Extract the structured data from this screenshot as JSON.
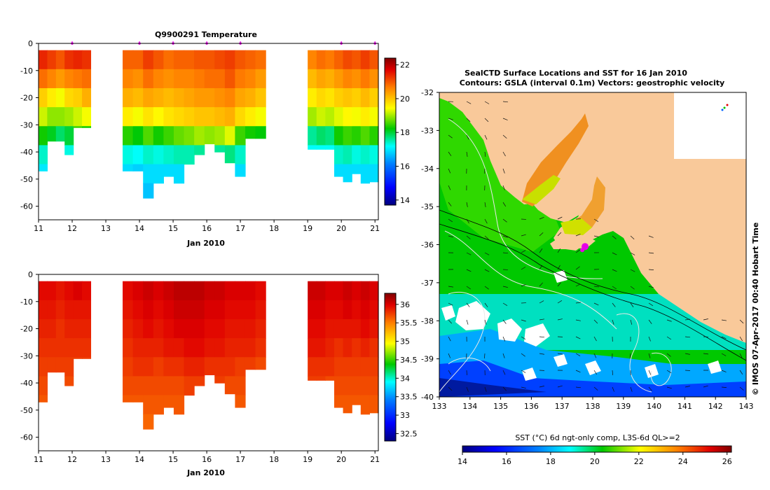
{
  "chart_data": [
    {
      "type": "heatmap",
      "title": "Q9900291  Temperature",
      "xlabel": "Jan 2010",
      "ylabel": "",
      "x_ticks": [
        "11",
        "12",
        "13",
        "14",
        "15",
        "16",
        "17",
        "18",
        "19",
        "20",
        "21"
      ],
      "xlim": [
        11,
        21.1
      ],
      "y_ticks": [
        "0",
        "-10",
        "-20",
        "-30",
        "-40",
        "-50",
        "-60"
      ],
      "ylim": [
        -65,
        0
      ],
      "profile_markers_day": [
        12.0,
        14.0,
        15.0,
        16.0,
        17.0,
        20.0,
        21.0
      ],
      "colorbar": {
        "ticks": [
          "14",
          "16",
          "18",
          "20",
          "22"
        ],
        "range": [
          13.7,
          22.4
        ]
      },
      "data_segments": [
        {
          "x_start": 11.0,
          "x_end": 12.55,
          "profiles": [
            {
              "x": 11.1,
              "depth": 47,
              "values": [
                21.4,
                20.8,
                19.9,
                19.2,
                18.3,
                17.4,
                17.0
              ]
            },
            {
              "x": 11.35,
              "depth": 36,
              "values": [
                21.2,
                20.6,
                19.6,
                18.9,
                18.1,
                17.2,
                17.0
              ]
            },
            {
              "x": 11.6,
              "depth": 36,
              "values": [
                21.0,
                20.4,
                19.4,
                18.9,
                17.8,
                17.1
              ]
            },
            {
              "x": 11.85,
              "depth": 41,
              "values": [
                21.3,
                20.6,
                19.8,
                19.0,
                18.0,
                17.3
              ]
            },
            {
              "x": 12.1,
              "depth": 31,
              "values": [
                21.4,
                20.7,
                19.9,
                19.2,
                18.5
              ]
            },
            {
              "x": 12.4,
              "depth": 31,
              "values": [
                21.3,
                20.8,
                20.2,
                19.4,
                18.3
              ]
            }
          ]
        },
        {
          "x_start": 13.5,
          "x_end": 17.75,
          "profiles": [
            {
              "x": 13.6,
              "depth": 47,
              "values": [
                20.9,
                20.6,
                20.2,
                19.6,
                18.4,
                17.3,
                16.9
              ]
            },
            {
              "x": 13.9,
              "depth": 47,
              "values": [
                20.9,
                20.5,
                20.1,
                19.4,
                18.2,
                17.2,
                16.8
              ]
            },
            {
              "x": 14.2,
              "depth": 57,
              "values": [
                21.2,
                20.8,
                20.3,
                19.7,
                18.6,
                17.4,
                16.9,
                16.7
              ]
            },
            {
              "x": 14.5,
              "depth": 53,
              "values": [
                21.0,
                20.6,
                20.2,
                19.5,
                18.3,
                17.3,
                16.9
              ]
            },
            {
              "x": 14.8,
              "depth": 49,
              "values": [
                20.8,
                20.5,
                20.1,
                19.7,
                18.5,
                17.4,
                16.9
              ]
            },
            {
              "x": 15.1,
              "depth": 53,
              "values": [
                20.9,
                20.6,
                20.2,
                19.8,
                18.7,
                17.5,
                16.9
              ]
            },
            {
              "x": 15.4,
              "depth": 46,
              "values": [
                20.9,
                20.6,
                20.3,
                19.9,
                18.8,
                17.5
              ]
            },
            {
              "x": 15.7,
              "depth": 41,
              "values": [
                21.0,
                20.7,
                20.4,
                20.0,
                19.0,
                17.6
              ]
            },
            {
              "x": 16.0,
              "depth": 37,
              "values": [
                21.0,
                20.8,
                20.4,
                20.0,
                18.9,
                17.6
              ]
            },
            {
              "x": 16.3,
              "depth": 40,
              "values": [
                21.1,
                20.8,
                20.5,
                20.1,
                19.0,
                17.6
              ]
            },
            {
              "x": 16.6,
              "depth": 44,
              "values": [
                21.2,
                21.0,
                20.6,
                20.2,
                19.3,
                17.7
              ]
            },
            {
              "x": 16.9,
              "depth": 49,
              "values": [
                21.0,
                20.7,
                20.3,
                19.8,
                18.5,
                17.4,
                16.9
              ]
            },
            {
              "x": 17.2,
              "depth": 35,
              "values": [
                20.9,
                20.6,
                20.2,
                19.6,
                18.3
              ]
            },
            {
              "x": 17.55,
              "depth": 35,
              "values": [
                20.8,
                20.4,
                20.0,
                19.4,
                18.2
              ]
            }
          ]
        },
        {
          "x_start": 19.0,
          "x_end": 21.1,
          "profiles": [
            {
              "x": 19.15,
              "depth": 39,
              "values": [
                20.6,
                20.1,
                19.6,
                19.0,
                17.6,
                17.2
              ]
            },
            {
              "x": 19.45,
              "depth": 39,
              "values": [
                20.8,
                20.3,
                19.8,
                19.2,
                17.8,
                17.2
              ]
            },
            {
              "x": 19.75,
              "depth": 39,
              "values": [
                20.7,
                20.2,
                19.7,
                19.1,
                17.7,
                17.2
              ]
            },
            {
              "x": 20.0,
              "depth": 49,
              "values": [
                20.9,
                20.4,
                19.9,
                19.3,
                18.3,
                17.4,
                16.9
              ]
            },
            {
              "x": 20.25,
              "depth": 51,
              "values": [
                21.1,
                20.6,
                20.0,
                19.5,
                18.5,
                17.5,
                16.9
              ]
            },
            {
              "x": 20.5,
              "depth": 48,
              "values": [
                21.0,
                20.5,
                19.9,
                19.4,
                18.4,
                17.3,
                16.9
              ]
            },
            {
              "x": 20.75,
              "depth": 53,
              "values": [
                21.2,
                20.7,
                20.1,
                19.6,
                18.6,
                17.4,
                16.9
              ]
            },
            {
              "x": 21.0,
              "depth": 51,
              "values": [
                21.0,
                20.5,
                19.9,
                19.4,
                18.4,
                17.3,
                16.9
              ]
            }
          ]
        }
      ]
    },
    {
      "type": "heatmap",
      "title": "",
      "xlabel": "Jan 2010",
      "ylabel": "",
      "x_ticks": [
        "11",
        "12",
        "13",
        "14",
        "15",
        "16",
        "17",
        "18",
        "19",
        "20",
        "21"
      ],
      "xlim": [
        11,
        21.1
      ],
      "y_ticks": [
        "0",
        "-10",
        "-20",
        "-30",
        "-40",
        "-50",
        "-60"
      ],
      "ylim": [
        -65,
        0
      ],
      "colorbar": {
        "ticks": [
          "32.5",
          "33",
          "33.5",
          "34",
          "34.5",
          "35",
          "35.5",
          "36"
        ],
        "range": [
          32.3,
          36.3
        ]
      },
      "data_segments": [
        {
          "x_start": 11.0,
          "x_end": 12.55,
          "profiles": [
            {
              "x": 11.1,
              "depth": 47,
              "values": [
                35.95,
                35.9,
                35.85,
                35.8,
                35.75,
                35.7,
                35.65
              ]
            },
            {
              "x": 11.35,
              "depth": 36,
              "values": [
                35.95,
                35.9,
                35.85,
                35.8,
                35.75,
                35.7
              ]
            },
            {
              "x": 11.6,
              "depth": 36,
              "values": [
                35.9,
                35.85,
                35.8,
                35.8,
                35.75,
                35.7
              ]
            },
            {
              "x": 11.85,
              "depth": 41,
              "values": [
                35.95,
                35.9,
                35.85,
                35.8,
                35.75,
                35.7
              ]
            },
            {
              "x": 12.1,
              "depth": 31,
              "values": [
                36.0,
                35.9,
                35.85,
                35.8,
                35.75
              ]
            },
            {
              "x": 12.4,
              "depth": 31,
              "values": [
                35.95,
                35.9,
                35.85,
                35.8,
                35.75
              ]
            }
          ]
        },
        {
          "x_start": 13.5,
          "x_end": 17.75,
          "profiles": [
            {
              "x": 13.6,
              "depth": 47,
              "values": [
                35.95,
                35.9,
                35.85,
                35.8,
                35.75,
                35.7,
                35.65
              ]
            },
            {
              "x": 13.9,
              "depth": 47,
              "values": [
                36.0,
                35.95,
                35.9,
                35.85,
                35.8,
                35.7,
                35.65
              ]
            },
            {
              "x": 14.2,
              "depth": 57,
              "values": [
                36.05,
                36.0,
                35.95,
                35.85,
                35.8,
                35.7,
                35.65,
                35.6
              ]
            },
            {
              "x": 14.5,
              "depth": 53,
              "values": [
                36.0,
                35.95,
                35.9,
                35.85,
                35.75,
                35.7,
                35.65
              ]
            },
            {
              "x": 14.8,
              "depth": 49,
              "values": [
                36.05,
                36.0,
                35.95,
                35.9,
                35.8,
                35.7,
                35.65
              ]
            },
            {
              "x": 15.1,
              "depth": 53,
              "values": [
                36.1,
                36.05,
                36.0,
                35.9,
                35.8,
                35.7,
                35.65
              ]
            },
            {
              "x": 15.4,
              "depth": 46,
              "values": [
                36.1,
                36.05,
                36.0,
                35.95,
                35.85,
                35.75
              ]
            },
            {
              "x": 15.7,
              "depth": 41,
              "values": [
                36.1,
                36.05,
                36.0,
                35.95,
                35.85,
                35.75
              ]
            },
            {
              "x": 16.0,
              "depth": 37,
              "values": [
                36.05,
                36.0,
                35.95,
                35.9,
                35.8,
                35.75
              ]
            },
            {
              "x": 16.3,
              "depth": 40,
              "values": [
                36.05,
                36.0,
                35.95,
                35.9,
                35.8,
                35.75
              ]
            },
            {
              "x": 16.6,
              "depth": 44,
              "values": [
                36.0,
                35.95,
                35.9,
                35.85,
                35.8,
                35.7
              ]
            },
            {
              "x": 16.9,
              "depth": 49,
              "values": [
                36.0,
                35.95,
                35.9,
                35.85,
                35.75,
                35.7,
                35.65
              ]
            },
            {
              "x": 17.2,
              "depth": 35,
              "values": [
                36.0,
                35.95,
                35.9,
                35.85,
                35.75
              ]
            },
            {
              "x": 17.55,
              "depth": 35,
              "values": [
                35.95,
                35.9,
                35.85,
                35.8,
                35.7
              ]
            }
          ]
        },
        {
          "x_start": 19.0,
          "x_end": 21.1,
          "profiles": [
            {
              "x": 19.15,
              "depth": 39,
              "values": [
                36.05,
                36.0,
                35.95,
                35.9,
                35.8,
                35.75
              ]
            },
            {
              "x": 19.45,
              "depth": 39,
              "values": [
                36.05,
                36.0,
                35.95,
                35.9,
                35.8,
                35.75
              ]
            },
            {
              "x": 19.75,
              "depth": 39,
              "values": [
                36.0,
                35.95,
                35.9,
                35.85,
                35.8,
                35.7
              ]
            },
            {
              "x": 20.0,
              "depth": 49,
              "values": [
                36.0,
                35.95,
                35.9,
                35.8,
                35.75,
                35.7,
                35.65
              ]
            },
            {
              "x": 20.25,
              "depth": 51,
              "values": [
                36.05,
                36.0,
                35.9,
                35.85,
                35.75,
                35.7,
                35.65
              ]
            },
            {
              "x": 20.5,
              "depth": 48,
              "values": [
                36.0,
                35.95,
                35.9,
                35.8,
                35.75,
                35.7,
                35.65
              ]
            },
            {
              "x": 20.75,
              "depth": 53,
              "values": [
                36.05,
                36.0,
                35.95,
                35.85,
                35.75,
                35.7,
                35.65
              ]
            },
            {
              "x": 21.0,
              "depth": 51,
              "values": [
                36.0,
                35.95,
                35.9,
                35.8,
                35.75,
                35.7,
                35.65
              ]
            }
          ]
        }
      ]
    },
    {
      "type": "heatmap",
      "title": "SealCTD Surface Locations and SST for 16 Jan 2010",
      "subtitle": "Contours: GSLA (interval 0.1m) Vectors: geostrophic velocity",
      "xlabel": "",
      "ylabel": "",
      "x_ticks": [
        "133",
        "134",
        "135",
        "136",
        "137",
        "138",
        "139",
        "140",
        "141",
        "142",
        "143"
      ],
      "xlim": [
        133,
        143
      ],
      "y_ticks": [
        "-32",
        "-33",
        "-34",
        "-35",
        "-36",
        "-37",
        "-38",
        "-39",
        "-40"
      ],
      "ylim": [
        -40,
        -32
      ],
      "seal_location": {
        "lon": 137.75,
        "lat": -36.05
      },
      "colorbar": {
        "label": "SST (°C) 6d ngt-only comp, L3S-6d QL>=2",
        "ticks": [
          "14",
          "16",
          "18",
          "20",
          "22",
          "24",
          "26"
        ],
        "range": [
          14,
          26.2
        ]
      },
      "credit": "© IMOS 07-Apr-2017 00:40 Hobart Time"
    }
  ],
  "colors": {
    "land": "#f9c99a",
    "marker": "#e600e6",
    "colormap": [
      "#00007f",
      "#0000ff",
      "#007fff",
      "#00ffff",
      "#00c800",
      "#ffff00",
      "#ff7f00",
      "#c00000",
      "#7f0000"
    ]
  }
}
